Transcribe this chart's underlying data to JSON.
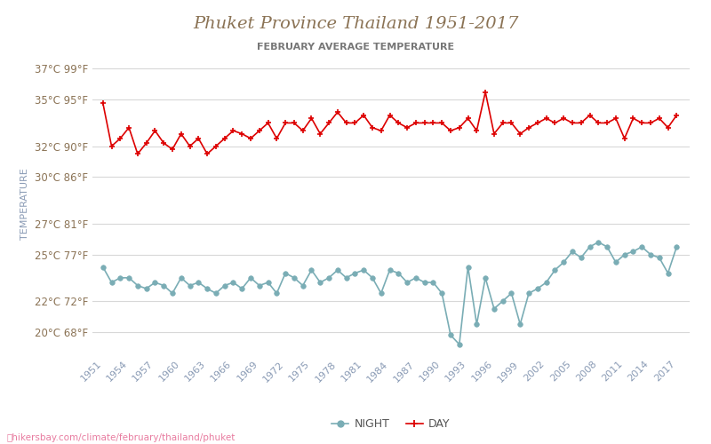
{
  "title": "Phuket Province Thailand 1951-2017",
  "subtitle": "FEBRUARY AVERAGE TEMPERATURE",
  "title_color": "#8B7355",
  "subtitle_color": "#777777",
  "xlabel_bottom": "hikersbay.com/climate/february/thailand/phuket",
  "ylabel": "TEMPERATURE",
  "background_color": "#ffffff",
  "grid_color": "#d8d8d8",
  "day_color": "#dd0000",
  "night_color": "#7aadb5",
  "years": [
    1951,
    1952,
    1953,
    1954,
    1955,
    1956,
    1957,
    1958,
    1959,
    1960,
    1961,
    1962,
    1963,
    1964,
    1965,
    1966,
    1967,
    1968,
    1969,
    1970,
    1971,
    1972,
    1973,
    1974,
    1975,
    1976,
    1977,
    1978,
    1979,
    1980,
    1981,
    1982,
    1983,
    1984,
    1985,
    1986,
    1987,
    1988,
    1989,
    1990,
    1991,
    1992,
    1993,
    1994,
    1995,
    1996,
    1997,
    1998,
    1999,
    2000,
    2001,
    2002,
    2003,
    2004,
    2005,
    2006,
    2007,
    2008,
    2009,
    2010,
    2011,
    2012,
    2013,
    2014,
    2015,
    2016,
    2017
  ],
  "day_temps": [
    34.8,
    32.0,
    32.5,
    33.2,
    31.5,
    32.2,
    33.0,
    32.2,
    31.8,
    32.8,
    32.0,
    32.5,
    31.5,
    32.0,
    32.5,
    33.0,
    32.8,
    32.5,
    33.0,
    33.5,
    32.5,
    33.5,
    33.5,
    33.0,
    33.8,
    32.8,
    33.5,
    34.2,
    33.5,
    33.5,
    34.0,
    33.2,
    33.0,
    34.0,
    33.5,
    33.2,
    33.5,
    33.5,
    33.5,
    33.5,
    33.0,
    33.2,
    33.8,
    33.0,
    35.5,
    32.8,
    33.5,
    33.5,
    32.8,
    33.2,
    33.5,
    33.8,
    33.5,
    33.8,
    33.5,
    33.5,
    34.0,
    33.5,
    33.5,
    33.8,
    32.5,
    33.8,
    33.5,
    33.5,
    33.8,
    33.2,
    34.0
  ],
  "night_temps": [
    24.2,
    23.2,
    23.5,
    23.5,
    23.0,
    22.8,
    23.2,
    23.0,
    22.5,
    23.5,
    23.0,
    23.2,
    22.8,
    22.5,
    23.0,
    23.2,
    22.8,
    23.5,
    23.0,
    23.2,
    22.5,
    23.8,
    23.5,
    23.0,
    24.0,
    23.2,
    23.5,
    24.0,
    23.5,
    23.8,
    24.0,
    23.5,
    22.5,
    24.0,
    23.8,
    23.2,
    23.5,
    23.2,
    23.2,
    22.5,
    19.8,
    19.2,
    24.2,
    20.5,
    23.5,
    21.5,
    22.0,
    22.5,
    20.5,
    22.5,
    22.8,
    23.2,
    24.0,
    24.5,
    25.2,
    24.8,
    25.5,
    25.8,
    25.5,
    24.5,
    25.0,
    25.2,
    25.5,
    25.0,
    24.8,
    23.8,
    25.5
  ],
  "ytick_labels": [
    "20°C 68°F",
    "22°C 72°F",
    "25°C 77°F",
    "27°C 81°F",
    "30°C 86°F",
    "32°C 90°F",
    "35°C 95°F",
    "37°C 99°F"
  ],
  "ytick_vals": [
    20,
    22,
    25,
    27,
    30,
    32,
    35,
    37
  ],
  "xtick_years": [
    1951,
    1954,
    1957,
    1960,
    1963,
    1966,
    1969,
    1972,
    1975,
    1978,
    1981,
    1984,
    1987,
    1990,
    1993,
    1996,
    1999,
    2002,
    2005,
    2008,
    2011,
    2014,
    2017
  ],
  "ymin": 18.5,
  "ymax": 38.0
}
